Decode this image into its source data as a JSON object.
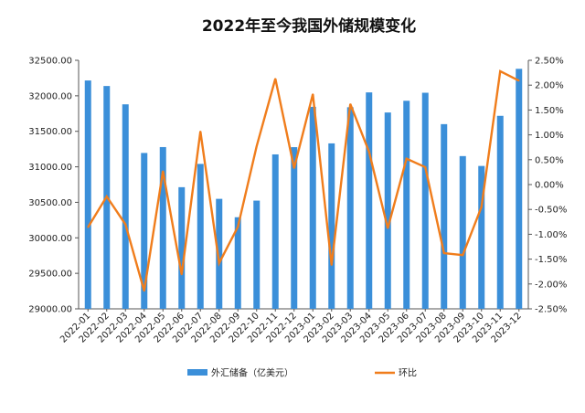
{
  "chart_data": {
    "type": "bar",
    "title": "2022年至今我国外储规模变化",
    "categories": [
      "2022-01",
      "2022-02",
      "2022-03",
      "2022-04",
      "2022-05",
      "2022-06",
      "2022-07",
      "2022-08",
      "2022-09",
      "2022-10",
      "2022-11",
      "2022-12",
      "2023-01",
      "2023-02",
      "2023-03",
      "2023-04",
      "2023-05",
      "2023-06",
      "2023-07",
      "2023-08",
      "2023-09",
      "2023-10",
      "2023-11",
      "2023-12"
    ],
    "series": [
      {
        "name": "外汇储备（亿美元）",
        "type": "bar",
        "axis": "left",
        "color": "#3b8fd9",
        "values": [
          32216,
          32138,
          31880,
          31195,
          31278,
          30713,
          31041,
          30549,
          30290,
          30524,
          31175,
          31277,
          31845,
          31330,
          31839,
          32048,
          31765,
          31930,
          32043,
          31601,
          31151,
          31012,
          31718,
          32380
        ]
      },
      {
        "name": "环比",
        "type": "line",
        "axis": "right",
        "color": "#f07d1c",
        "values": [
          -0.86,
          -0.24,
          -0.8,
          -2.14,
          0.27,
          -1.81,
          1.07,
          -1.58,
          -0.85,
          0.77,
          2.13,
          0.33,
          1.82,
          -1.62,
          1.62,
          0.66,
          -0.88,
          0.52,
          0.35,
          -1.38,
          -1.42,
          -0.45,
          2.28,
          2.09
        ]
      }
    ],
    "ylim": [
      29000,
      32500
    ],
    "yticks": [
      "29000.00",
      "29500.00",
      "30000.00",
      "30500.00",
      "31000.00",
      "31500.00",
      "32000.00",
      "32500.00"
    ],
    "y2lim": [
      -2.5,
      2.5
    ],
    "y2ticks": [
      "-2.50%",
      "-2.00%",
      "-1.50%",
      "-1.00%",
      "-0.50%",
      "0.00%",
      "0.50%",
      "1.00%",
      "1.50%",
      "2.00%",
      "2.50%"
    ],
    "grid": false,
    "legend": "bottom"
  }
}
